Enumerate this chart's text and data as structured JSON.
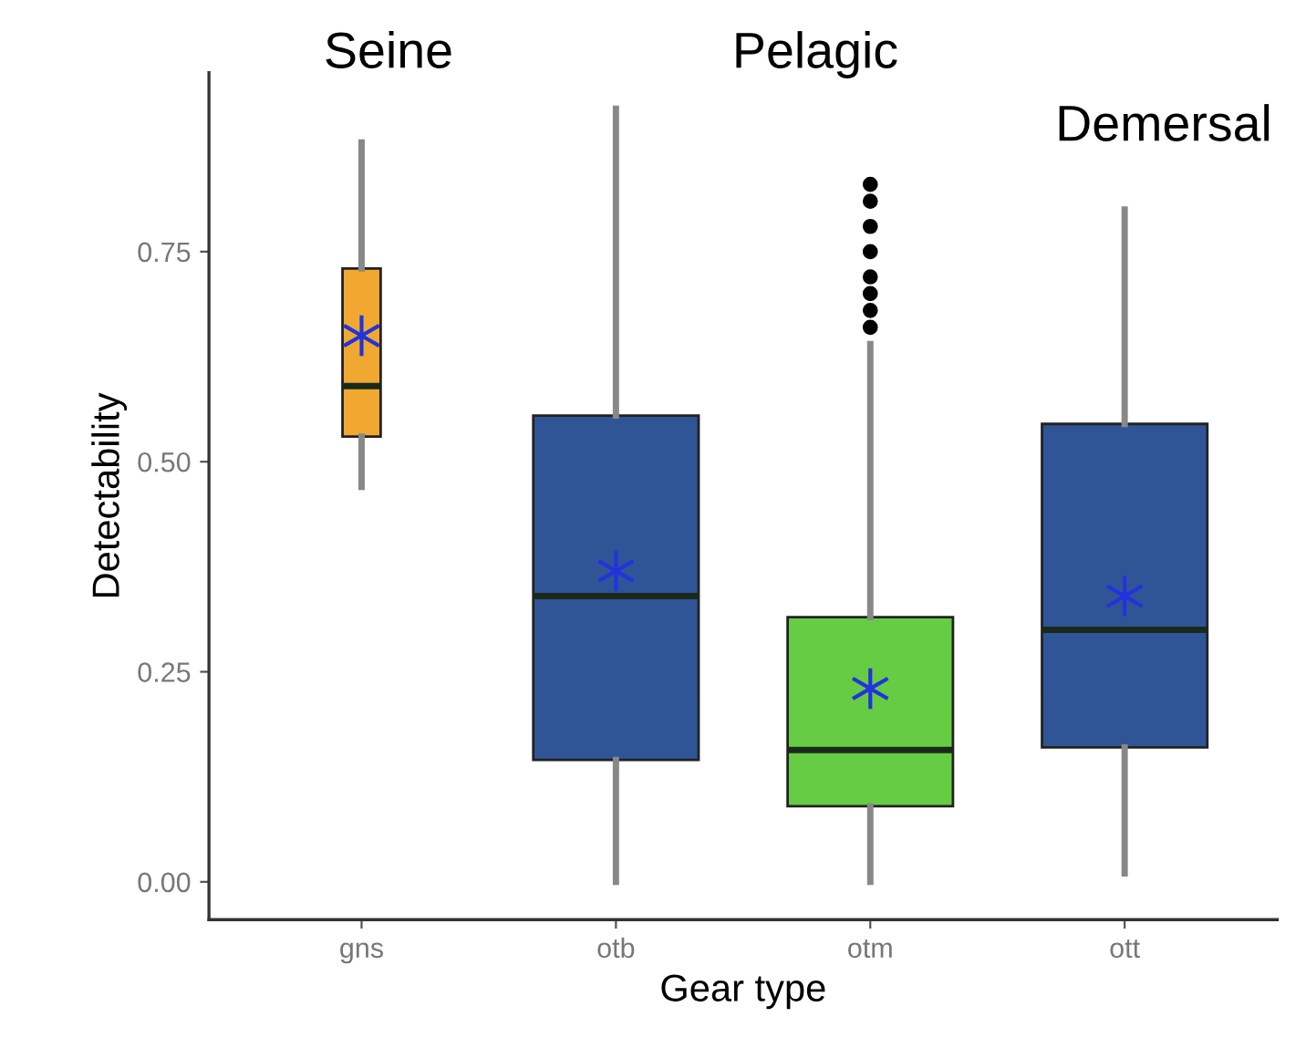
{
  "chart_data": {
    "type": "box",
    "xlabel": "Gear type",
    "ylabel": "Detectability",
    "categories": [
      "gns",
      "otb",
      "otm",
      "ott"
    ],
    "colors": [
      "#f0a830",
      "#2f5597",
      "#66cc44",
      "#2f5597"
    ],
    "boxes": [
      {
        "low": 0.47,
        "q1": 0.53,
        "median": 0.59,
        "q3": 0.73,
        "high": 0.88,
        "mean": 0.65
      },
      {
        "low": 0.0,
        "q1": 0.145,
        "median": 0.34,
        "q3": 0.555,
        "high": 0.92,
        "mean": 0.37
      },
      {
        "low": 0.0,
        "q1": 0.09,
        "median": 0.157,
        "q3": 0.315,
        "high": 0.64,
        "mean": 0.23,
        "outliers": [
          0.83,
          0.81,
          0.78,
          0.75,
          0.72,
          0.7,
          0.68,
          0.66
        ]
      },
      {
        "low": 0.01,
        "q1": 0.16,
        "median": 0.3,
        "q3": 0.545,
        "high": 0.8,
        "mean": 0.34
      }
    ],
    "ylim": [
      -0.045,
      0.963
    ],
    "yticks": [
      {
        "value": 0,
        "label": "0.00"
      },
      {
        "value": 0.25,
        "label": "0.25"
      },
      {
        "value": 0.5,
        "label": "0.50"
      },
      {
        "value": 0.75,
        "label": "0.75"
      }
    ],
    "grid": false,
    "annotations": [
      "Seine",
      "Pelagic",
      "Demersal"
    ]
  }
}
